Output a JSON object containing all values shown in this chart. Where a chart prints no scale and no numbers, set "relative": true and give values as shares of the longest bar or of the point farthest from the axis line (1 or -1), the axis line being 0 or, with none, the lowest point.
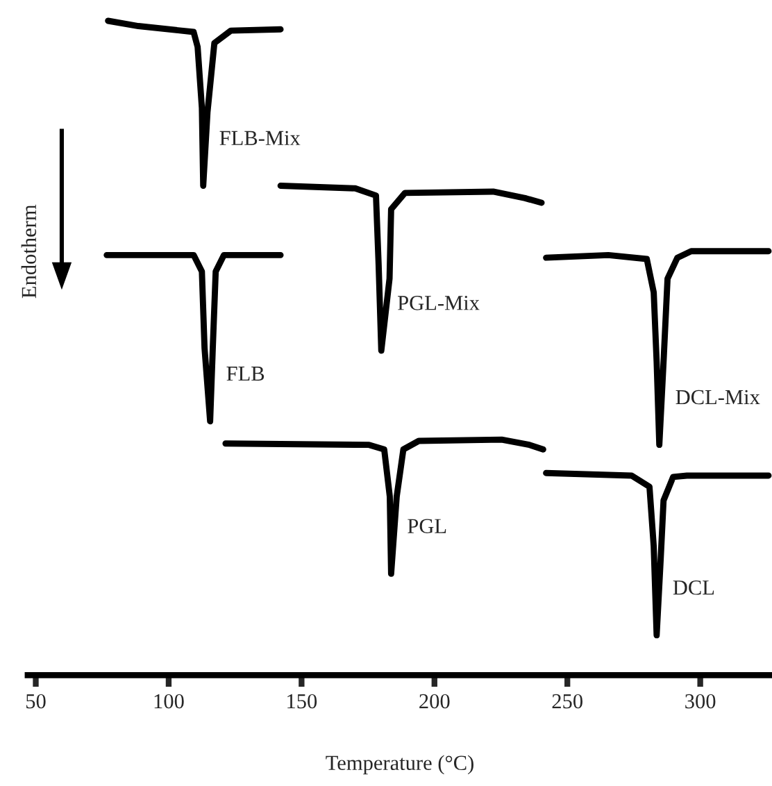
{
  "chart_data": {
    "type": "line",
    "relative": true,
    "xlabel": "Temperature (°C)",
    "ylabel": "Endotherm",
    "xlim": [
      47,
      327
    ],
    "xticks": [
      50,
      100,
      150,
      200,
      250,
      300
    ],
    "tick_labels": "x",
    "grid": false,
    "legend": false,
    "series": [
      {
        "name": "FLB-Mix",
        "color": "#000000",
        "x": [
          77.2,
          88.6,
          109.4,
          110.9,
          112.5,
          113.0,
          114.6,
          117.2,
          123.4,
          142.1
        ],
        "values": [
          1.0,
          0.992,
          0.983,
          0.96,
          0.867,
          0.748,
          0.86,
          0.966,
          0.985,
          0.987
        ]
      },
      {
        "name": "FLB",
        "color": "#000000",
        "x": [
          76.7,
          109.4,
          112.5,
          113.5,
          115.6,
          116.6,
          117.7,
          120.8,
          142.1
        ],
        "values": [
          0.642,
          0.642,
          0.617,
          0.5,
          0.388,
          0.5,
          0.617,
          0.642,
          0.642
        ]
      },
      {
        "name": "PGL-Mix",
        "color": "#000000",
        "x": [
          142.1,
          170.2,
          178.0,
          179.0,
          180.0,
          183.1,
          183.7,
          188.9,
          222.1,
          234.1,
          240.3
        ],
        "values": [
          0.748,
          0.744,
          0.733,
          0.627,
          0.496,
          0.606,
          0.712,
          0.737,
          0.739,
          0.729,
          0.722
        ]
      },
      {
        "name": "PGL",
        "color": "#000000",
        "x": [
          121.4,
          175.4,
          181.1,
          183.2,
          183.7,
          185.8,
          188.3,
          194.1,
          225.3,
          235.7,
          240.9
        ],
        "values": [
          0.354,
          0.352,
          0.345,
          0.273,
          0.155,
          0.273,
          0.345,
          0.358,
          0.36,
          0.352,
          0.345
        ]
      },
      {
        "name": "DCL-Mix",
        "color": "#000000",
        "x": [
          242.0,
          265.4,
          279.9,
          282.5,
          283.6,
          284.6,
          286.2,
          287.7,
          291.4,
          296.6,
          325.7
        ],
        "values": [
          0.638,
          0.642,
          0.636,
          0.585,
          0.479,
          0.352,
          0.479,
          0.606,
          0.638,
          0.648,
          0.648
        ]
      },
      {
        "name": "DCL",
        "color": "#000000",
        "x": [
          242.0,
          274.2,
          280.9,
          282.5,
          283.6,
          285.1,
          286.2,
          289.8,
          295.0,
          325.7
        ],
        "values": [
          0.309,
          0.305,
          0.288,
          0.197,
          0.061,
          0.176,
          0.267,
          0.303,
          0.305,
          0.305
        ]
      }
    ]
  }
}
